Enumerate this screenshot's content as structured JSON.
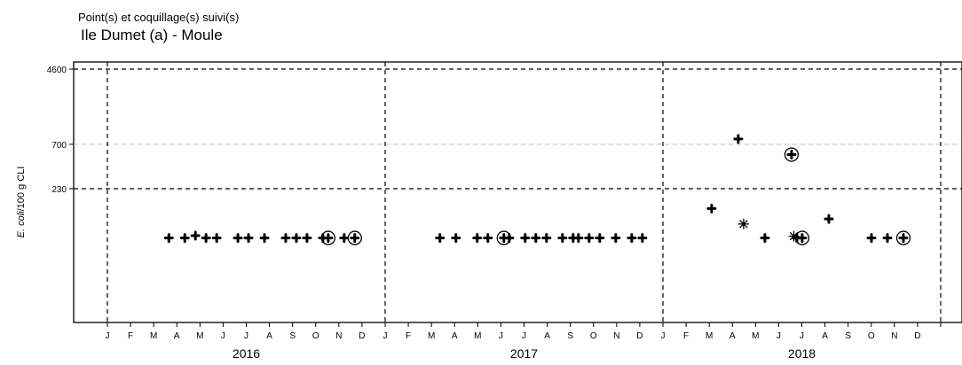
{
  "chart_data": {
    "type": "scatter",
    "subtitle": "Point(s) et coquillage(s) suivi(s)",
    "title": "Ile Dumet (a) - Moule",
    "ylabel_italic": "E. coli",
    "ylabel_rest": "/100 g CLI",
    "y_scale": "log",
    "y_ticks": [
      "230",
      "700",
      "4600"
    ],
    "month_labels": [
      "J",
      "F",
      "M",
      "A",
      "M",
      "J",
      "J",
      "A",
      "S",
      "O",
      "N",
      "D"
    ],
    "years": [
      "2016",
      "2017",
      "2018"
    ],
    "grid": "dashed",
    "markers": {
      "plus": "result",
      "circle": "circled result",
      "asterisk": "asterisk result"
    },
    "points": [
      {
        "date": "2016-03-22",
        "value": 67,
        "marker": "plus"
      },
      {
        "date": "2016-04-12",
        "value": 67,
        "marker": "plus"
      },
      {
        "date": "2016-04-26",
        "value": 71,
        "marker": "plus"
      },
      {
        "date": "2016-05-10",
        "value": 67,
        "marker": "plus"
      },
      {
        "date": "2016-05-24",
        "value": 67,
        "marker": "plus"
      },
      {
        "date": "2016-06-21",
        "value": 67,
        "marker": "plus"
      },
      {
        "date": "2016-07-05",
        "value": 67,
        "marker": "plus"
      },
      {
        "date": "2016-07-26",
        "value": 67,
        "marker": "plus"
      },
      {
        "date": "2016-08-23",
        "value": 67,
        "marker": "plus"
      },
      {
        "date": "2016-09-06",
        "value": 67,
        "marker": "plus"
      },
      {
        "date": "2016-09-20",
        "value": 67,
        "marker": "plus"
      },
      {
        "date": "2016-10-11",
        "value": 67,
        "marker": "plus"
      },
      {
        "date": "2016-10-18",
        "value": 67,
        "marker": "circle"
      },
      {
        "date": "2016-11-08",
        "value": 67,
        "marker": "plus"
      },
      {
        "date": "2016-11-22",
        "value": 67,
        "marker": "circle"
      },
      {
        "date": "2017-03-14",
        "value": 67,
        "marker": "plus"
      },
      {
        "date": "2017-04-04",
        "value": 67,
        "marker": "plus"
      },
      {
        "date": "2017-05-02",
        "value": 67,
        "marker": "plus"
      },
      {
        "date": "2017-05-16",
        "value": 67,
        "marker": "plus"
      },
      {
        "date": "2017-06-06",
        "value": 67,
        "marker": "circle"
      },
      {
        "date": "2017-06-13",
        "value": 67,
        "marker": "plus"
      },
      {
        "date": "2017-07-04",
        "value": 67,
        "marker": "plus"
      },
      {
        "date": "2017-07-18",
        "value": 67,
        "marker": "plus"
      },
      {
        "date": "2017-08-01",
        "value": 67,
        "marker": "plus"
      },
      {
        "date": "2017-08-22",
        "value": 67,
        "marker": "plus"
      },
      {
        "date": "2017-09-05",
        "value": 67,
        "marker": "plus"
      },
      {
        "date": "2017-09-12",
        "value": 67,
        "marker": "plus"
      },
      {
        "date": "2017-09-26",
        "value": 67,
        "marker": "plus"
      },
      {
        "date": "2017-10-10",
        "value": 67,
        "marker": "plus"
      },
      {
        "date": "2017-10-31",
        "value": 67,
        "marker": "plus"
      },
      {
        "date": "2017-11-21",
        "value": 67,
        "marker": "plus"
      },
      {
        "date": "2017-12-05",
        "value": 67,
        "marker": "plus"
      },
      {
        "date": "2018-03-06",
        "value": 140,
        "marker": "plus"
      },
      {
        "date": "2018-04-10",
        "value": 800,
        "marker": "plus"
      },
      {
        "date": "2018-04-17",
        "value": 95,
        "marker": "asterisk"
      },
      {
        "date": "2018-05-15",
        "value": 67,
        "marker": "plus"
      },
      {
        "date": "2018-06-19",
        "value": 540,
        "marker": "circle"
      },
      {
        "date": "2018-06-22",
        "value": 70,
        "marker": "asterisk"
      },
      {
        "date": "2018-06-26",
        "value": 67,
        "marker": "plus"
      },
      {
        "date": "2018-07-03",
        "value": 67,
        "marker": "circle"
      },
      {
        "date": "2018-08-07",
        "value": 108,
        "marker": "plus"
      },
      {
        "date": "2018-10-02",
        "value": 67,
        "marker": "plus"
      },
      {
        "date": "2018-10-23",
        "value": 67,
        "marker": "plus"
      },
      {
        "date": "2018-11-13",
        "value": 67,
        "marker": "circle"
      }
    ]
  }
}
